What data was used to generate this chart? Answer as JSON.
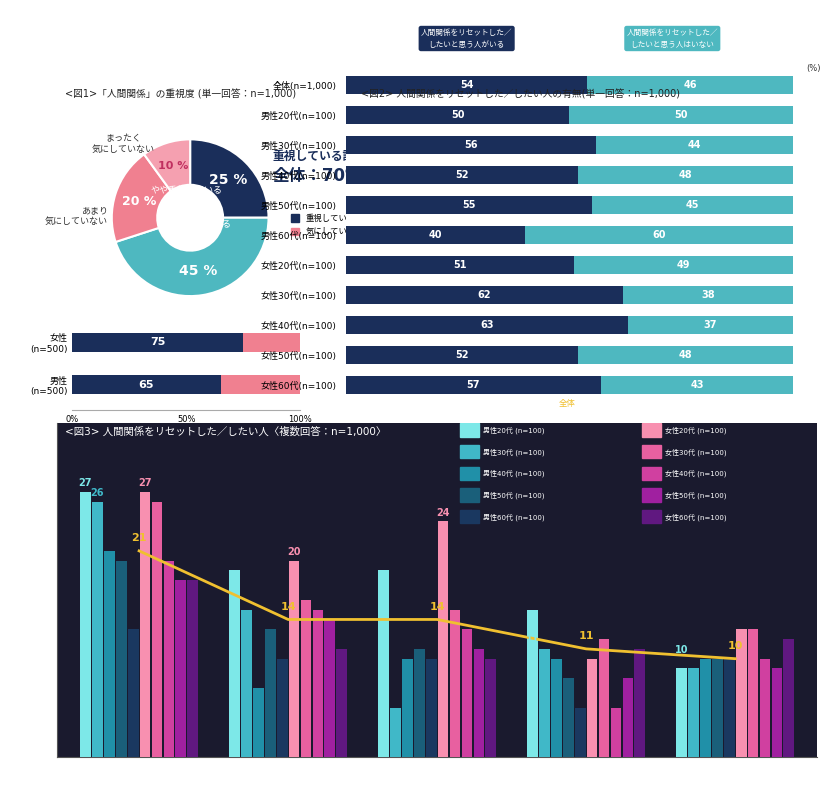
{
  "fig1_title": "<図1>「人間関係」の重視度 (単一回答：n=1,000)",
  "fig2_title": "<図2> 人間関係をリセットした／したい人の有無(単一回答：n=1,000)",
  "fig3_title": "<図3> 人間関係をリセットした／したい人〈複数回答：n=1,000〉",
  "pie_values": [
    25,
    45,
    20,
    10
  ],
  "pie_colors": [
    "#1a2e5a",
    "#4eb8c0",
    "#f08090",
    "#f5a0b0"
  ],
  "bar1_values1": [
    65,
    75
  ],
  "bar1_values2": [
    35,
    25
  ],
  "bar1_color1": "#1a2e5a",
  "bar1_color2": "#f08090",
  "bar1_legend1": "重視している計",
  "bar1_legend2": "気にしていない計",
  "fig2_categories": [
    "全体(n=1,000)",
    "男性20代(n=100)",
    "男性30代(n=100)",
    "男性40代(n=100)",
    "男性50代(n=100)",
    "男性60代(n=100)",
    "女性20代(n=100)",
    "女性30代(n=100)",
    "女性40代(n=100)",
    "女性50代(n=100)",
    "女性60代(n=100)"
  ],
  "fig2_values1": [
    54,
    50,
    56,
    52,
    55,
    40,
    51,
    62,
    63,
    52,
    57
  ],
  "fig2_values2": [
    46,
    50,
    44,
    48,
    45,
    60,
    49,
    38,
    37,
    48,
    43
  ],
  "fig2_color1": "#1a2e5a",
  "fig2_color2": "#4eb8c0",
  "fig3_overall": [
    21,
    14,
    14,
    11,
    10
  ],
  "fig3_male20": [
    27,
    19,
    19,
    15,
    9
  ],
  "fig3_male30": [
    26,
    15,
    5,
    11,
    9
  ],
  "fig3_male40": [
    21,
    7,
    10,
    10,
    10
  ],
  "fig3_male50": [
    20,
    13,
    11,
    8,
    10
  ],
  "fig3_male60": [
    13,
    10,
    10,
    5,
    10
  ],
  "fig3_female20": [
    27,
    20,
    24,
    10,
    13
  ],
  "fig3_female30": [
    26,
    16,
    15,
    12,
    13
  ],
  "fig3_female40": [
    20,
    15,
    13,
    5,
    10
  ],
  "fig3_female50": [
    18,
    14,
    11,
    8,
    9
  ],
  "fig3_female60": [
    18,
    11,
    10,
    11,
    12
  ],
  "colors_male": [
    "#7de8e8",
    "#40b8c8",
    "#2090a8",
    "#1a5f7a",
    "#1a3860"
  ],
  "colors_female": [
    "#f890b0",
    "#e860a0",
    "#d040a0",
    "#a020a0",
    "#601880"
  ],
  "overall_line_color": "#f0c030",
  "fig3_bg": "#1a1a2e",
  "legend_labels_left": [
    "男性20代 (n=100)",
    "男性30代 (n=100)",
    "男性40代 (n=100)",
    "男性50代 (n=100)",
    "男性60代 (n=100)"
  ],
  "legend_labels_right": [
    "女性20代 (n=100)",
    "女性30代 (n=100)",
    "女性40代 (n=100)",
    "女性50代 (n=100)",
    "女性60代 (n=100)"
  ]
}
